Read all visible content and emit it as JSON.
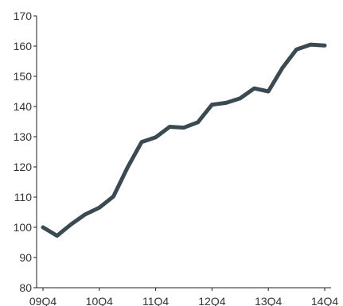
{
  "chart_data": {
    "type": "line",
    "title": "",
    "xlabel": "",
    "ylabel": "",
    "ylim": [
      80,
      170
    ],
    "y_ticks": [
      80,
      90,
      100,
      110,
      120,
      130,
      140,
      150,
      160,
      170
    ],
    "x_tick_labels": [
      "09Q4",
      "10Q4",
      "11Q4",
      "12Q4",
      "13Q4",
      "14Q4"
    ],
    "grid": false,
    "legend": "none",
    "colors": {
      "series": "#3a4a51",
      "axis": "#222222",
      "text": "#333333"
    },
    "series": [
      {
        "name": "",
        "x": [
          "09Q4",
          "10Q1",
          "10Q2",
          "10Q3",
          "10Q4",
          "11Q1",
          "11Q2",
          "11Q3",
          "11Q4",
          "12Q1",
          "12Q2",
          "12Q3",
          "12Q4",
          "13Q1",
          "13Q2",
          "13Q3",
          "13Q4",
          "14Q1",
          "14Q2",
          "14Q3",
          "14Q4"
        ],
        "values": [
          100,
          97.2,
          101,
          104.3,
          106.5,
          110.2,
          119.8,
          128.2,
          129.8,
          133.3,
          133,
          134.8,
          140.6,
          141.2,
          142.7,
          146,
          145,
          152.8,
          158.9,
          160.5,
          160.2
        ]
      }
    ]
  }
}
